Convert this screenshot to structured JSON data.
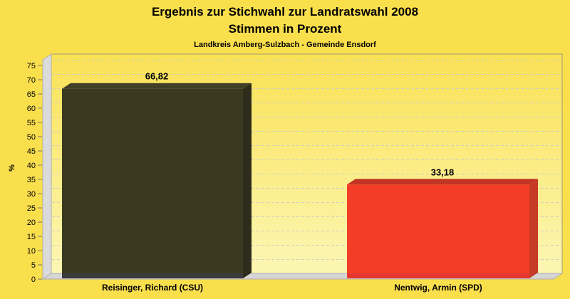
{
  "chart_data": {
    "type": "bar",
    "style": "3d-bar",
    "title": "Ergebnis zur Stichwahl zur Landratswahl 2008",
    "subtitle": "Stimmen in Prozent",
    "caption": "Landkreis Amberg-Sulzbach - Gemeinde Ensdorf",
    "categories": [
      "Reisinger, Richard (CSU)",
      "Nentwig, Armin (SPD)"
    ],
    "values": [
      66.82,
      33.18
    ],
    "value_labels": [
      "66,82",
      "33,18"
    ],
    "ylabel": "%",
    "ylim": [
      0,
      75
    ],
    "tick_step": 5,
    "grid": true,
    "legend": false,
    "series_colors": [
      {
        "front": "#3B3920",
        "top": "#413F26",
        "side": "#2E2C1A",
        "base": "#3A3A3E"
      },
      {
        "front": "#F33D26",
        "top": "#C23524",
        "side": "#C63B26",
        "base": "#E63830"
      }
    ],
    "colors": {
      "background": "#FADF4D",
      "plot_top": "#FAE255",
      "plot_bottom": "#FCF6B4",
      "wall": "#DBDBDB",
      "floor": "#D5D5D5",
      "border": "#A39B78",
      "edge": "#ADADAD",
      "grid": "#CFCFC2",
      "tick": "#777777",
      "text": "#000000"
    }
  }
}
